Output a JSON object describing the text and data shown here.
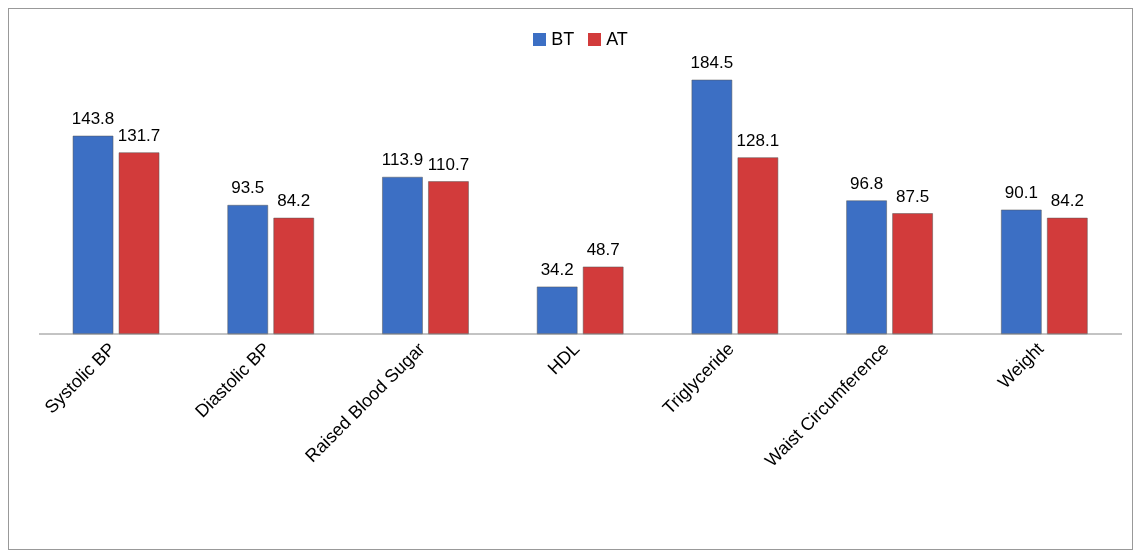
{
  "chart_data": {
    "type": "bar",
    "categories": [
      "Systolic BP",
      "Diastolic BP",
      "Raised Blood Sugar",
      "HDL",
      "Triglyceride",
      "Waist Circumference",
      "Weight"
    ],
    "series": [
      {
        "name": "BT",
        "color": "#3c6fc4",
        "values": [
          143.8,
          93.5,
          113.9,
          34.2,
          184.5,
          96.8,
          90.1
        ]
      },
      {
        "name": "AT",
        "color": "#d23b3b",
        "values": [
          131.7,
          84.2,
          110.7,
          48.7,
          128.1,
          87.5,
          84.2
        ]
      }
    ],
    "data_labels": true,
    "legend": "top",
    "grid": false
  }
}
